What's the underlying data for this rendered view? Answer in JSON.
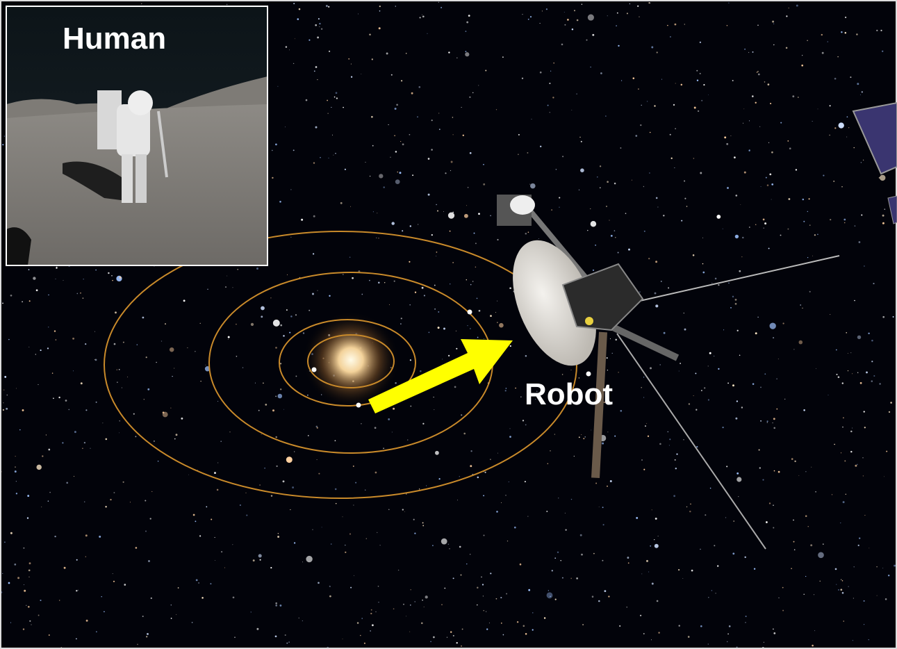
{
  "inset": {
    "label": "Human"
  },
  "main": {
    "label": "Robot"
  }
}
